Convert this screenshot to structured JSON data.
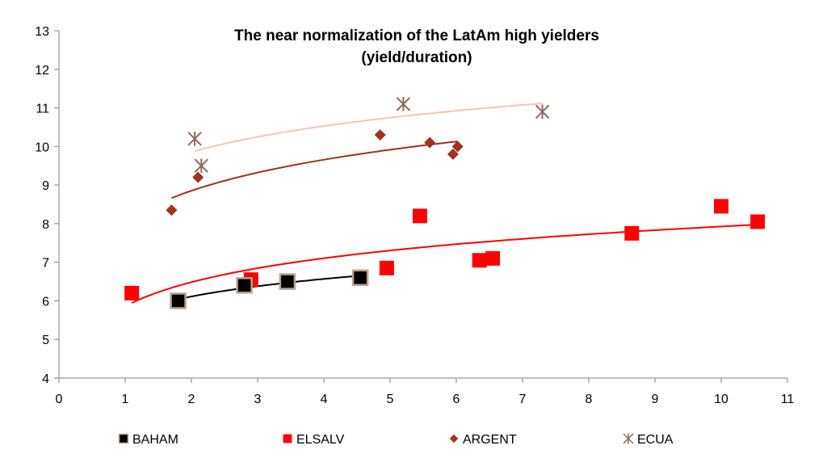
{
  "chart_data": {
    "type": "scatter",
    "title": "The near normalization of the LatAm high yielders",
    "subtitle": "(yield/duration)",
    "xlabel": "",
    "ylabel": "",
    "xlim": [
      0,
      11
    ],
    "ylim": [
      4,
      13
    ],
    "xticks": [
      "0",
      "1",
      "2",
      "3",
      "4",
      "5",
      "6",
      "7",
      "8",
      "9",
      "10",
      "11"
    ],
    "yticks": [
      "4",
      "5",
      "6",
      "7",
      "8",
      "9",
      "10",
      "11",
      "12",
      "13"
    ],
    "grid": false,
    "legend_position": "bottom",
    "series": [
      {
        "name": "BAHAM",
        "marker": "square-bordered",
        "color": "#000000",
        "trend_color": "#000000",
        "points": [
          [
            1.8,
            6.0
          ],
          [
            2.8,
            6.4
          ],
          [
            3.45,
            6.5
          ],
          [
            4.55,
            6.6
          ]
        ],
        "trend_range": [
          1.8,
          4.55
        ]
      },
      {
        "name": "ELSALV",
        "marker": "square",
        "color": "#ff0000",
        "trend_color": "#ff0000",
        "points": [
          [
            1.1,
            6.2
          ],
          [
            2.9,
            6.55
          ],
          [
            4.95,
            6.85
          ],
          [
            5.45,
            8.2
          ],
          [
            6.35,
            7.05
          ],
          [
            6.55,
            7.1
          ],
          [
            8.65,
            7.75
          ],
          [
            10.0,
            8.45
          ],
          [
            10.55,
            8.05
          ]
        ],
        "trend_range": [
          1.1,
          10.55
        ]
      },
      {
        "name": "ARGENT",
        "marker": "diamond",
        "color": "#a0321e",
        "trend_color": "#a0321e",
        "points": [
          [
            1.7,
            8.35
          ],
          [
            2.1,
            9.2
          ],
          [
            4.85,
            10.3
          ],
          [
            5.6,
            10.1
          ],
          [
            5.95,
            9.8
          ],
          [
            6.02,
            10.0
          ]
        ],
        "trend_range": [
          1.7,
          6.02
        ]
      },
      {
        "name": "ECUA",
        "marker": "asterisk",
        "color": "#8b6a5a",
        "trend_color": "#f3c7b4",
        "points": [
          [
            2.05,
            10.2
          ],
          [
            2.15,
            9.5
          ],
          [
            5.2,
            11.1
          ],
          [
            7.3,
            10.9
          ]
        ],
        "trend_range": [
          2.05,
          7.3
        ]
      }
    ]
  }
}
